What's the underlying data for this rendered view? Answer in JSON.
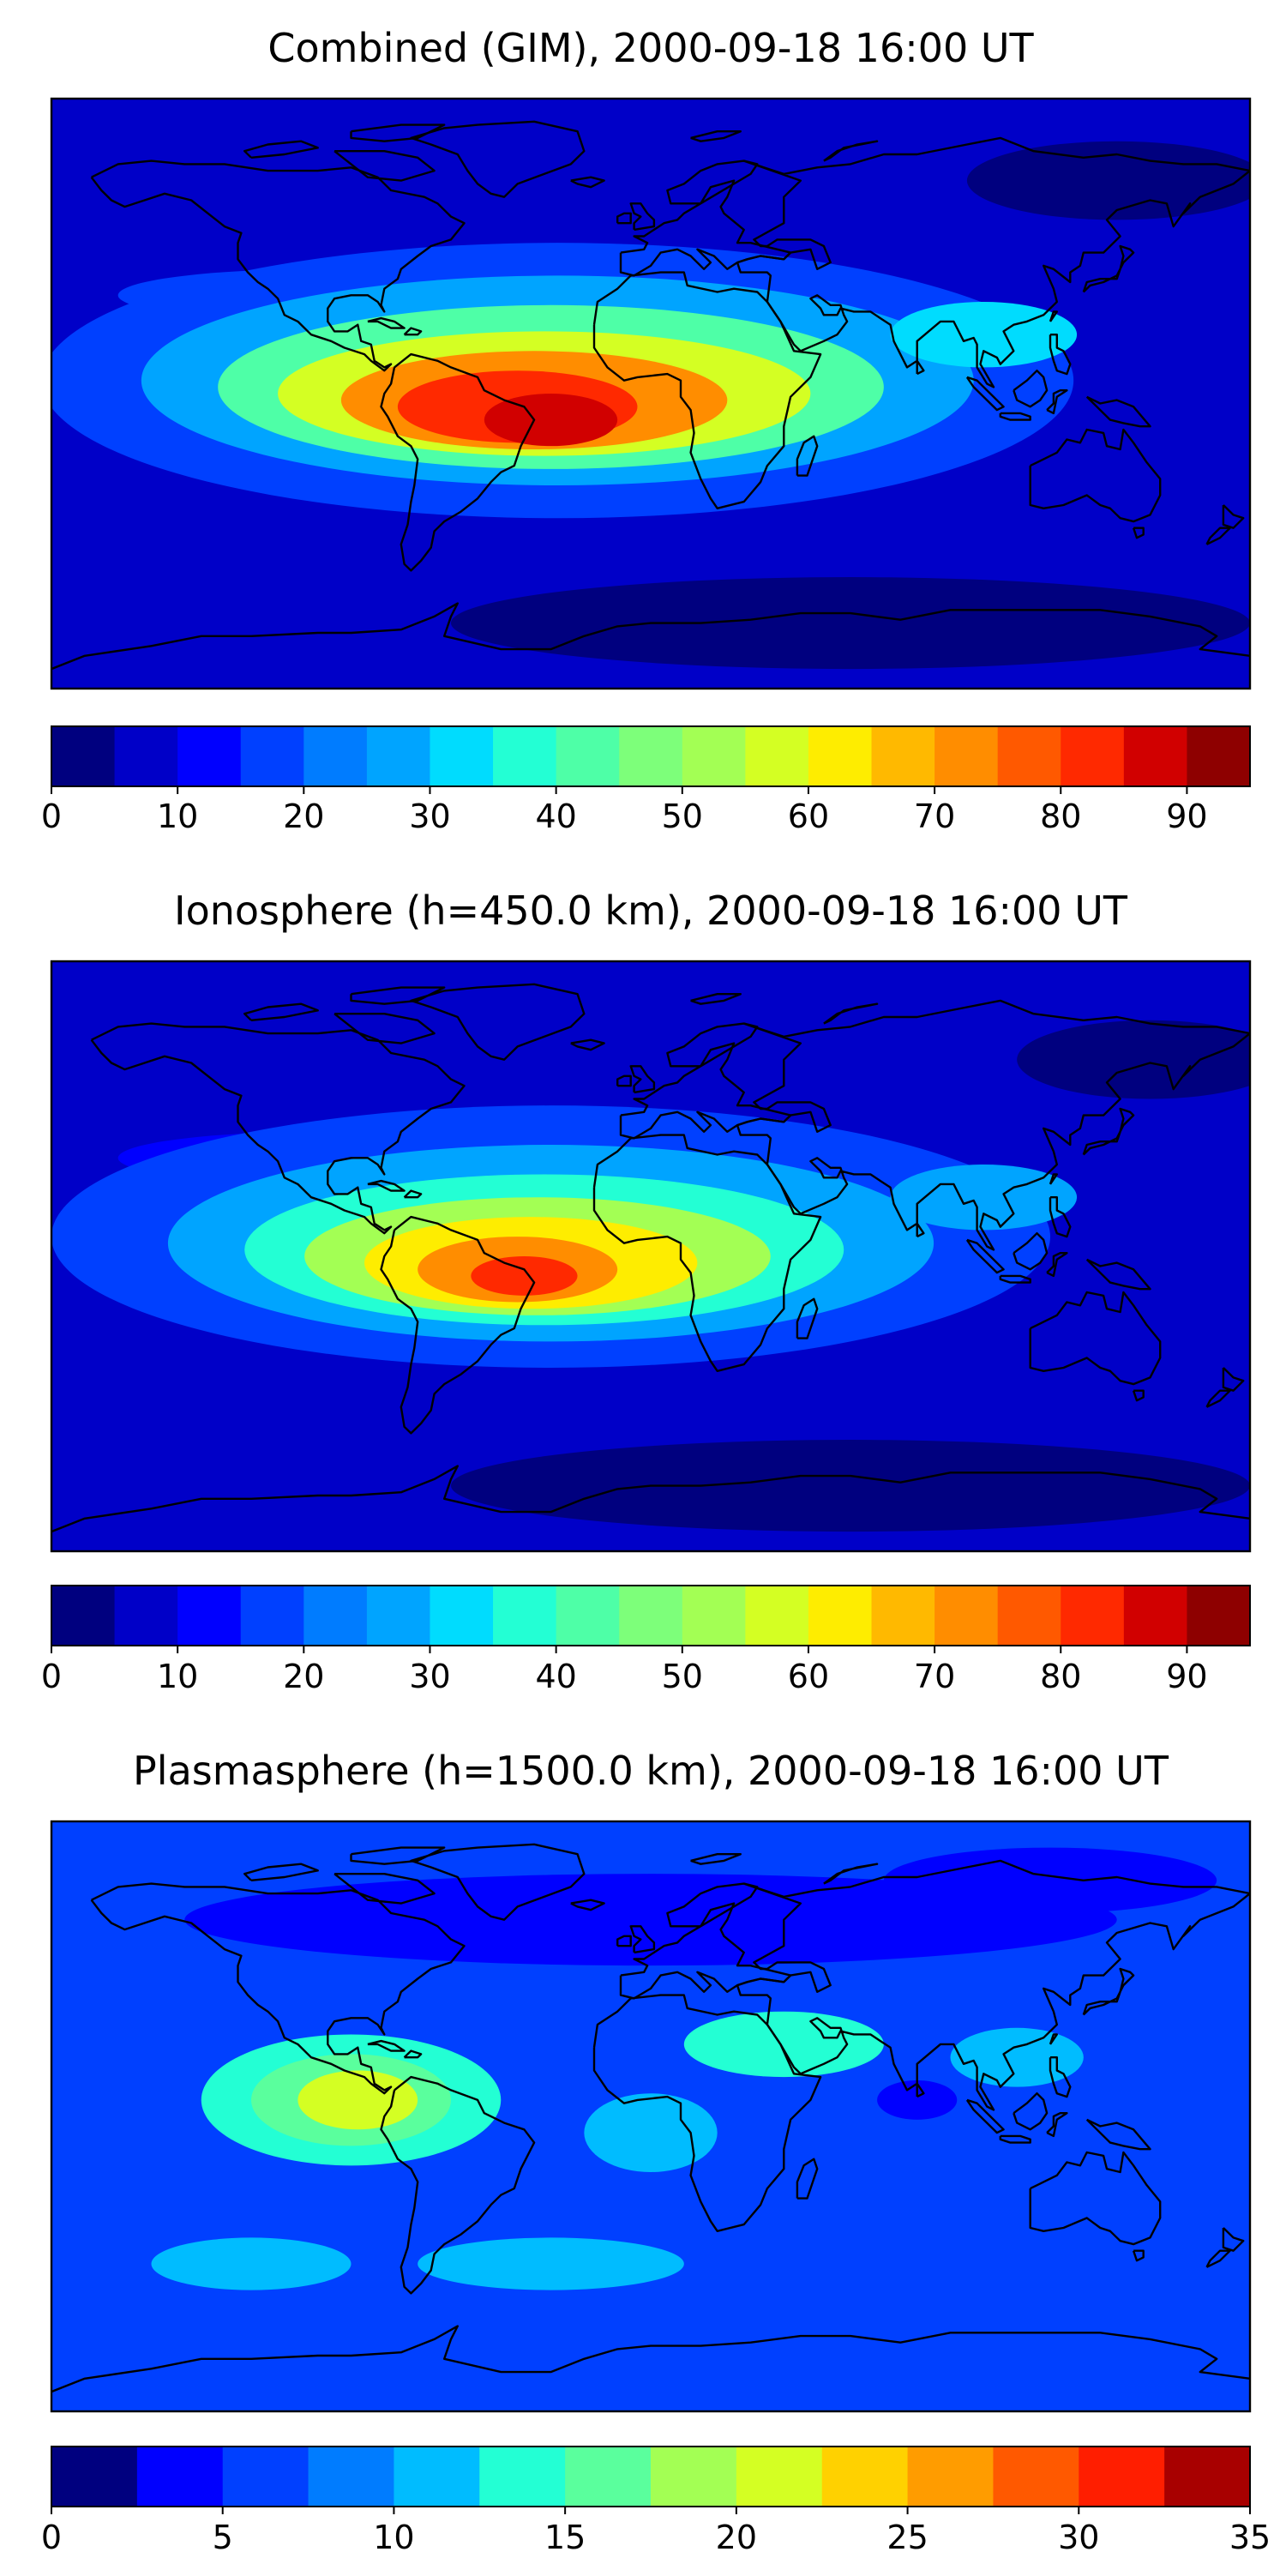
{
  "chart_data": [
    {
      "type": "heatmap",
      "title": "Combined (GIM), 2000-09-18 16:00 UT",
      "xlabel": "",
      "ylabel": "",
      "map_projection": "equirectangular",
      "lon_range": [
        -180,
        180
      ],
      "lat_range": [
        -90,
        90
      ],
      "grid": false,
      "features": [
        "coastlines"
      ],
      "colormap": "jet",
      "colorbar": {
        "orientation": "horizontal",
        "placement": "below",
        "levels": [
          0,
          5,
          10,
          15,
          20,
          25,
          30,
          35,
          40,
          45,
          50,
          55,
          60,
          65,
          70,
          75,
          80,
          85,
          90,
          95
        ],
        "ticks": [
          0,
          10,
          20,
          30,
          40,
          50,
          60,
          70,
          80,
          90
        ],
        "tick_labels": [
          "0",
          "10",
          "20",
          "30",
          "40",
          "50",
          "60",
          "70",
          "80",
          "90"
        ],
        "colors": [
          "#00007f",
          "#0000c8",
          "#0000ff",
          "#0040ff",
          "#007cff",
          "#00a4ff",
          "#00dcfe",
          "#23ffd4",
          "#4effa7",
          "#7dff7a",
          "#a3ff54",
          "#d4ff23",
          "#feed00",
          "#ffb900",
          "#ff8d00",
          "#ff5900",
          "#ff2900",
          "#d10000",
          "#8e0000"
        ]
      },
      "background_value": 8,
      "features_blobs": [
        {
          "lon": -28,
          "lat": 4,
          "rx": 155,
          "ry": 42,
          "value": 18
        },
        {
          "lon": -28,
          "lat": 4,
          "rx": 125,
          "ry": 32,
          "value": 28
        },
        {
          "lon": -30,
          "lat": 2,
          "rx": 100,
          "ry": 25,
          "value": 42
        },
        {
          "lon": -32,
          "lat": 0,
          "rx": 80,
          "ry": 19,
          "value": 58
        },
        {
          "lon": -35,
          "lat": -2,
          "rx": 58,
          "ry": 15,
          "value": 72
        },
        {
          "lon": -40,
          "lat": -4,
          "rx": 36,
          "ry": 11,
          "value": 82
        },
        {
          "lon": -30,
          "lat": -8,
          "rx": 20,
          "ry": 8,
          "value": 88
        },
        {
          "lon": 100,
          "lat": 18,
          "rx": 28,
          "ry": 10,
          "value": 32
        },
        {
          "lon": -100,
          "lat": 30,
          "rx": 60,
          "ry": 8,
          "value": 16
        },
        {
          "lon": 140,
          "lat": 65,
          "rx": 45,
          "ry": 12,
          "value": 4
        },
        {
          "lon": 60,
          "lat": -70,
          "rx": 120,
          "ry": 14,
          "value": 4
        }
      ]
    },
    {
      "type": "heatmap",
      "title": "Ionosphere  (h=450.0 km), 2000-09-18 16:00 UT",
      "xlabel": "",
      "ylabel": "",
      "map_projection": "equirectangular",
      "lon_range": [
        -180,
        180
      ],
      "lat_range": [
        -90,
        90
      ],
      "grid": false,
      "features": [
        "coastlines"
      ],
      "colormap": "jet",
      "colorbar": {
        "orientation": "horizontal",
        "placement": "below",
        "levels": [
          0,
          5,
          10,
          15,
          20,
          25,
          30,
          35,
          40,
          45,
          50,
          55,
          60,
          65,
          70,
          75,
          80,
          85,
          90,
          95
        ],
        "ticks": [
          0,
          10,
          20,
          30,
          40,
          50,
          60,
          70,
          80,
          90
        ],
        "tick_labels": [
          "0",
          "10",
          "20",
          "30",
          "40",
          "50",
          "60",
          "70",
          "80",
          "90"
        ],
        "colors": [
          "#00007f",
          "#0000c8",
          "#0000ff",
          "#0040ff",
          "#007cff",
          "#00a4ff",
          "#00dcfe",
          "#23ffd4",
          "#4effa7",
          "#7dff7a",
          "#a3ff54",
          "#d4ff23",
          "#feed00",
          "#ffb900",
          "#ff8d00",
          "#ff5900",
          "#ff2900",
          "#d10000",
          "#8e0000"
        ]
      },
      "background_value": 7,
      "features_blobs": [
        {
          "lon": -30,
          "lat": 6,
          "rx": 150,
          "ry": 40,
          "value": 16
        },
        {
          "lon": -30,
          "lat": 4,
          "rx": 115,
          "ry": 30,
          "value": 26
        },
        {
          "lon": -32,
          "lat": 2,
          "rx": 90,
          "ry": 23,
          "value": 38
        },
        {
          "lon": -34,
          "lat": 0,
          "rx": 70,
          "ry": 18,
          "value": 52
        },
        {
          "lon": -36,
          "lat": -2,
          "rx": 50,
          "ry": 14,
          "value": 64
        },
        {
          "lon": -40,
          "lat": -4,
          "rx": 30,
          "ry": 10,
          "value": 74
        },
        {
          "lon": -38,
          "lat": -6,
          "rx": 16,
          "ry": 6,
          "value": 80
        },
        {
          "lon": 100,
          "lat": 18,
          "rx": 28,
          "ry": 10,
          "value": 26
        },
        {
          "lon": -100,
          "lat": 30,
          "rx": 60,
          "ry": 8,
          "value": 14
        },
        {
          "lon": 150,
          "lat": 60,
          "rx": 40,
          "ry": 12,
          "value": 4
        },
        {
          "lon": 60,
          "lat": -70,
          "rx": 120,
          "ry": 14,
          "value": 3
        }
      ]
    },
    {
      "type": "heatmap",
      "title": "Plasmasphere (h=1500.0 km), 2000-09-18 16:00 UT",
      "xlabel": "",
      "ylabel": "",
      "map_projection": "equirectangular",
      "lon_range": [
        -180,
        180
      ],
      "lat_range": [
        -90,
        90
      ],
      "grid": false,
      "features": [
        "coastlines"
      ],
      "colormap": "jet",
      "colorbar": {
        "orientation": "horizontal",
        "placement": "below",
        "levels": [
          0,
          2.5,
          5,
          7.5,
          10,
          12.5,
          15,
          17.5,
          20,
          22.5,
          25,
          27.5,
          30,
          32.5,
          35
        ],
        "ticks": [
          0,
          5,
          10,
          15,
          20,
          25,
          30,
          35
        ],
        "tick_labels": [
          "0",
          "5",
          "10",
          "15",
          "20",
          "25",
          "30",
          "35"
        ],
        "colors": [
          "#00007f",
          "#0000ff",
          "#0040ff",
          "#007cff",
          "#00bcff",
          "#23ffd4",
          "#5aff9d",
          "#a3ff54",
          "#d4ff23",
          "#ffd100",
          "#ff9c00",
          "#ff5900",
          "#ff1e00",
          "#a80000"
        ]
      },
      "background_value": 7,
      "features_blobs": [
        {
          "lon": -90,
          "lat": 5,
          "rx": 45,
          "ry": 20,
          "value": 14
        },
        {
          "lon": -90,
          "lat": 5,
          "rx": 30,
          "ry": 14,
          "value": 17
        },
        {
          "lon": -88,
          "lat": 5,
          "rx": 18,
          "ry": 9,
          "value": 20
        },
        {
          "lon": 40,
          "lat": 22,
          "rx": 30,
          "ry": 10,
          "value": 13
        },
        {
          "lon": 110,
          "lat": 18,
          "rx": 20,
          "ry": 9,
          "value": 12
        },
        {
          "lon": 80,
          "lat": 5,
          "rx": 12,
          "ry": 6,
          "value": 4
        },
        {
          "lon": -30,
          "lat": -45,
          "rx": 40,
          "ry": 8,
          "value": 11
        },
        {
          "lon": -120,
          "lat": -45,
          "rx": 30,
          "ry": 8,
          "value": 10
        },
        {
          "lon": 0,
          "lat": -5,
          "rx": 20,
          "ry": 12,
          "value": 10
        },
        {
          "lon": 0,
          "lat": 60,
          "rx": 140,
          "ry": 14,
          "value": 4
        },
        {
          "lon": 120,
          "lat": 72,
          "rx": 50,
          "ry": 10,
          "value": 3
        }
      ]
    }
  ]
}
